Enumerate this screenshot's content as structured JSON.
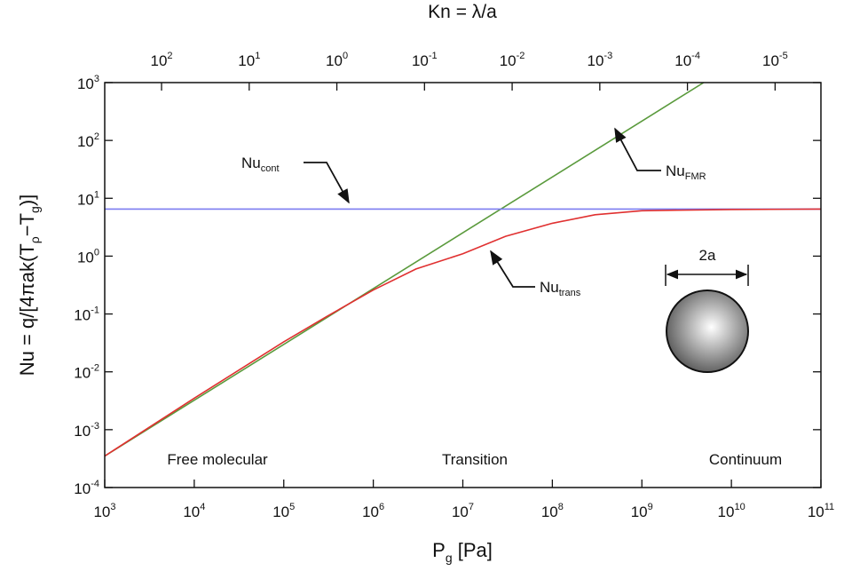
{
  "chart_data": {
    "type": "line",
    "title": "Kn = λ/a",
    "xlabel_parts": [
      "P",
      "g",
      " [Pa]"
    ],
    "ylabel_parts": [
      "Nu = q/[4πak(T",
      "ρ",
      "−T",
      "g",
      ")]"
    ],
    "log_x": true,
    "log_y": true,
    "xlim": [
      1000,
      100000000000
    ],
    "ylim": [
      0.0001,
      1000
    ],
    "xticks": [
      {
        "value": 1000,
        "label": "10",
        "exponent": "3"
      },
      {
        "value": 10000,
        "label": "10",
        "exponent": "4"
      },
      {
        "value": 100000,
        "label": "10",
        "exponent": "5"
      },
      {
        "value": 1000000,
        "label": "10",
        "exponent": "6"
      },
      {
        "value": 10000000,
        "label": "10",
        "exponent": "7"
      },
      {
        "value": 100000000,
        "label": "10",
        "exponent": "8"
      },
      {
        "value": 1000000000,
        "label": "10",
        "exponent": "9"
      },
      {
        "value": 10000000000,
        "label": "10",
        "exponent": "10"
      },
      {
        "value": 100000000000,
        "label": "10",
        "exponent": "11"
      }
    ],
    "yticks": [
      {
        "value": 0.0001,
        "label": "10",
        "exponent": "-4"
      },
      {
        "value": 0.001,
        "label": "10",
        "exponent": "-3"
      },
      {
        "value": 0.01,
        "label": "10",
        "exponent": "-2"
      },
      {
        "value": 0.1,
        "label": "10",
        "exponent": "-1"
      },
      {
        "value": 1,
        "label": "10",
        "exponent": "0"
      },
      {
        "value": 10,
        "label": "10",
        "exponent": "1"
      },
      {
        "value": 100,
        "label": "10",
        "exponent": "2"
      },
      {
        "value": 1000,
        "label": "10",
        "exponent": "3"
      }
    ],
    "x2lim": [
      445,
      3e-06
    ],
    "x2ticks": [
      {
        "value": 100,
        "label": "10",
        "exponent": "2"
      },
      {
        "value": 10,
        "label": "10",
        "exponent": "1"
      },
      {
        "value": 1,
        "label": "10",
        "exponent": "0"
      },
      {
        "value": 0.1,
        "label": "10",
        "exponent": "-1"
      },
      {
        "value": 0.01,
        "label": "10",
        "exponent": "-2"
      },
      {
        "value": 0.001,
        "label": "10",
        "exponent": "-3"
      },
      {
        "value": 0.0001,
        "label": "10",
        "exponent": "-4"
      },
      {
        "value": 1e-05,
        "label": "10",
        "exponent": "-5"
      }
    ],
    "series": [
      {
        "color": "#5a9a3c",
        "x": [
          1000,
          4900000000
        ],
        "values": [
          0.00035,
          1000
        ]
      },
      {
        "color": "#7b7bf0",
        "x": [
          1000,
          100000000000
        ],
        "values": [
          6.5,
          6.5
        ]
      },
      {
        "color": "#e03030",
        "x": [
          1000,
          10000,
          100000,
          300000,
          1000000,
          3000000,
          10000000,
          30000000,
          100000000,
          300000000,
          1000000000,
          10000000000,
          100000000000
        ],
        "values": [
          0.00035,
          0.0035,
          0.033,
          0.09,
          0.26,
          0.6,
          1.1,
          2.2,
          3.7,
          5.2,
          6.1,
          6.4,
          6.5
        ]
      }
    ],
    "annotations": [
      {
        "text": "Nu",
        "sub": "cont"
      },
      {
        "text": "Nu",
        "sub": "FMR"
      },
      {
        "text": "Nu",
        "sub": "trans"
      }
    ],
    "regions": [
      "Free molecular",
      "Transition",
      "Continuum"
    ],
    "diagram_label": "2a"
  }
}
